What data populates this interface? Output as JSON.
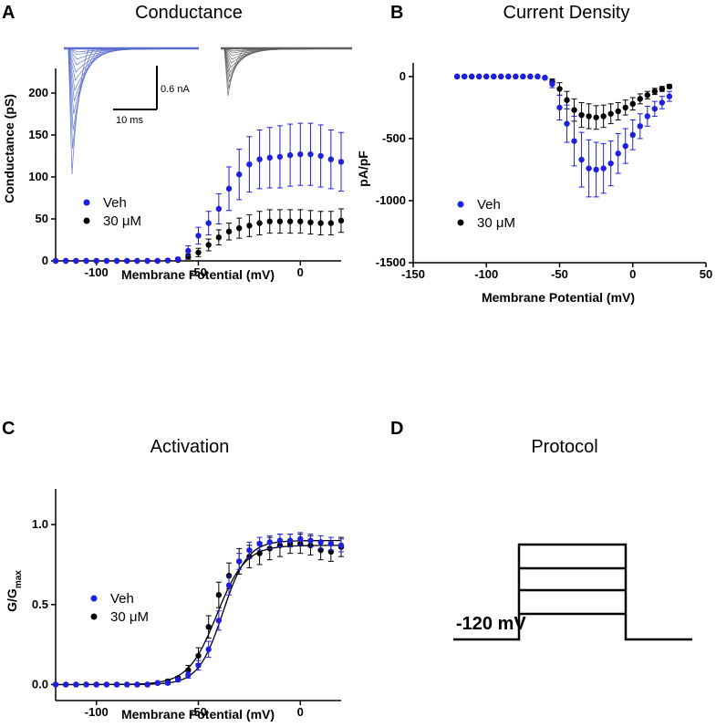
{
  "panels": {
    "A": {
      "letter": "A",
      "title": "Conductance",
      "xlabel": "Membrane Potential (mV)",
      "ylabel": "Conductance (pS)",
      "scalebar_current": "0.6 nA",
      "scalebar_time": "10 ms"
    },
    "B": {
      "letter": "B",
      "title": "Current Density",
      "xlabel": "Membrane Potential (mV)",
      "ylabel": "pA/pF"
    },
    "C": {
      "letter": "C",
      "title": "Activation",
      "xlabel": "Membrane Potential (mV)",
      "ylabel_main": "G/G",
      "ylabel_sub": "max"
    },
    "D": {
      "letter": "D",
      "title": "Protocol",
      "holding_label": "-120 mV"
    }
  },
  "colors": {
    "veh": "#1f1fe0",
    "drug": "#000000",
    "trace_veh": "#5a6fd0",
    "trace_drug": "#606060"
  },
  "chart_data": [
    {
      "id": "A",
      "type": "scatter",
      "title": "Conductance",
      "xlabel": "Membrane Potential (mV)",
      "ylabel": "Conductance (pS)",
      "xlim": [
        -120,
        20
      ],
      "ylim": [
        0,
        225
      ],
      "xticks": [
        -100,
        -50,
        0
      ],
      "yticks": [
        0,
        50,
        100,
        150,
        200
      ],
      "legend_position": "left",
      "x": [
        -120,
        -115,
        -110,
        -105,
        -100,
        -95,
        -90,
        -85,
        -80,
        -75,
        -70,
        -65,
        -60,
        -55,
        -50,
        -45,
        -40,
        -35,
        -30,
        -25,
        -20,
        -15,
        -10,
        -5,
        0,
        5,
        10,
        15,
        20
      ],
      "series": [
        {
          "name": "Veh",
          "color": "#1f1fe0",
          "values": [
            0,
            0,
            0,
            0,
            0,
            0,
            0,
            0,
            0,
            0,
            0,
            0.5,
            2,
            12,
            30,
            45,
            62,
            86,
            103,
            115,
            121,
            123,
            124,
            126,
            127,
            127,
            125,
            121,
            118
          ],
          "errors": [
            0,
            0,
            0,
            0,
            0,
            0,
            0,
            0,
            0,
            0,
            0,
            0.5,
            2,
            6,
            10,
            14,
            18,
            26,
            30,
            33,
            35,
            36,
            37,
            37,
            37,
            37,
            37,
            35,
            35
          ]
        },
        {
          "name": "30 μM",
          "color": "#000000",
          "values": [
            0,
            0,
            0,
            0,
            0,
            0,
            0,
            0,
            0,
            0,
            0,
            0.5,
            1,
            5,
            10,
            19,
            28,
            35,
            39,
            42,
            45,
            47,
            47,
            47,
            47,
            46,
            45,
            45,
            48
          ],
          "errors": [
            0,
            0,
            0,
            0,
            0,
            0,
            0,
            0,
            0,
            0,
            0,
            0.5,
            1,
            3,
            5,
            7,
            9,
            10,
            12,
            13,
            14,
            14,
            14,
            14,
            14,
            14,
            14,
            14,
            14
          ]
        }
      ]
    },
    {
      "id": "B",
      "type": "scatter",
      "title": "Current Density",
      "xlabel": "Membrane Potential (mV)",
      "ylabel": "pA/pF",
      "xlim": [
        -150,
        50
      ],
      "ylim": [
        -1500,
        80
      ],
      "xticks": [
        -150,
        -100,
        -50,
        0,
        50
      ],
      "yticks": [
        0,
        -500,
        -1000,
        -1500
      ],
      "legend_position": "bottom-left",
      "x": [
        -120,
        -115,
        -110,
        -105,
        -100,
        -95,
        -90,
        -85,
        -80,
        -75,
        -70,
        -65,
        -60,
        -55,
        -50,
        -45,
        -40,
        -35,
        -30,
        -25,
        -20,
        -15,
        -10,
        -5,
        0,
        5,
        10,
        15,
        20,
        25
      ],
      "series": [
        {
          "name": "Veh",
          "color": "#1f1fe0",
          "values": [
            0,
            0,
            0,
            0,
            0,
            0,
            0,
            0,
            0,
            0,
            0,
            0,
            -10,
            -60,
            -250,
            -380,
            -520,
            -670,
            -740,
            -750,
            -740,
            -700,
            -620,
            -560,
            -470,
            -400,
            -320,
            -260,
            -210,
            -160
          ],
          "errors": [
            0,
            0,
            0,
            0,
            0,
            0,
            0,
            0,
            0,
            0,
            0,
            0,
            5,
            30,
            100,
            150,
            200,
            220,
            230,
            220,
            200,
            180,
            160,
            140,
            120,
            100,
            80,
            60,
            50,
            40
          ]
        },
        {
          "name": "30 μM",
          "color": "#000000",
          "values": [
            0,
            0,
            0,
            0,
            0,
            0,
            0,
            0,
            0,
            0,
            0,
            0,
            -10,
            -40,
            -100,
            -190,
            -270,
            -310,
            -320,
            -330,
            -320,
            -300,
            -280,
            -250,
            -220,
            -180,
            -150,
            -120,
            -100,
            -80
          ],
          "errors": [
            0,
            0,
            0,
            0,
            0,
            0,
            0,
            0,
            0,
            0,
            0,
            0,
            5,
            20,
            50,
            70,
            90,
            100,
            100,
            95,
            90,
            80,
            70,
            60,
            50,
            40,
            30,
            25,
            20,
            15
          ]
        }
      ]
    },
    {
      "id": "C",
      "type": "scatter",
      "title": "Activation",
      "xlabel": "Membrane Potential (mV)",
      "ylabel": "G/Gmax",
      "xlim": [
        -120,
        20
      ],
      "ylim": [
        -0.1,
        1.2
      ],
      "xticks": [
        -100,
        -50,
        0
      ],
      "yticks": [
        0.0,
        0.5,
        1.0
      ],
      "legend_position": "left",
      "x": [
        -120,
        -115,
        -110,
        -105,
        -100,
        -95,
        -90,
        -85,
        -80,
        -75,
        -70,
        -65,
        -60,
        -55,
        -50,
        -45,
        -40,
        -35,
        -30,
        -25,
        -20,
        -15,
        -10,
        -5,
        0,
        5,
        10,
        15,
        20
      ],
      "fit": {
        "Veh": {
          "vhalf": -38,
          "k": 6,
          "gmax": 0.9
        },
        "30 μM": {
          "vhalf": -41,
          "k": 7,
          "gmax": 0.87
        }
      },
      "series": [
        {
          "name": "Veh",
          "color": "#1f1fe0",
          "values": [
            0,
            0,
            0,
            0,
            0,
            0,
            0,
            0,
            0,
            0,
            0.01,
            0.01,
            0.03,
            0.06,
            0.12,
            0.22,
            0.4,
            0.62,
            0.77,
            0.84,
            0.88,
            0.89,
            0.9,
            0.9,
            0.91,
            0.9,
            0.89,
            0.88,
            0.87
          ],
          "errors": [
            0,
            0,
            0,
            0,
            0,
            0,
            0,
            0,
            0,
            0,
            0,
            0.01,
            0.01,
            0.02,
            0.03,
            0.05,
            0.06,
            0.06,
            0.05,
            0.05,
            0.04,
            0.04,
            0.04,
            0.04,
            0.04,
            0.04,
            0.04,
            0.04,
            0.04
          ]
        },
        {
          "name": "30 μM",
          "color": "#000000",
          "values": [
            0,
            0,
            0,
            0,
            0,
            0,
            0,
            0,
            0,
            0,
            0.01,
            0.02,
            0.04,
            0.09,
            0.18,
            0.36,
            0.56,
            0.68,
            0.77,
            0.8,
            0.82,
            0.85,
            0.87,
            0.88,
            0.88,
            0.87,
            0.84,
            0.83,
            0.86
          ],
          "errors": [
            0,
            0,
            0,
            0,
            0,
            0,
            0,
            0,
            0,
            0,
            0,
            0.01,
            0.01,
            0.03,
            0.05,
            0.07,
            0.08,
            0.08,
            0.08,
            0.07,
            0.07,
            0.07,
            0.07,
            0.06,
            0.06,
            0.06,
            0.06,
            0.06,
            0.06
          ]
        }
      ]
    }
  ]
}
